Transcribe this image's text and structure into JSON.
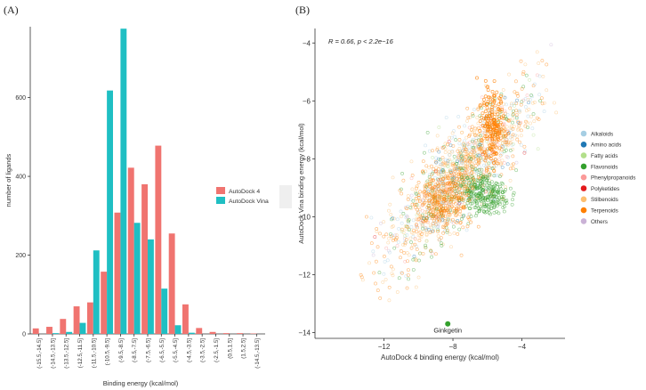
{
  "panels": {
    "a_label": "(A)",
    "b_label": "(B)"
  },
  "chart_data": [
    {
      "type": "bar",
      "title": "",
      "xlabel": "Binding energy (kcal/mol)",
      "ylabel": "number of ligands",
      "ylim": [
        0,
        780
      ],
      "yticks": [
        0,
        200,
        400,
        600
      ],
      "categories": [
        "(-15.5,-14.5]",
        "(-14.5,-13.5]",
        "(-13.5,-12.5]",
        "(-12.5,-11.5]",
        "(-11.5,-10.5]",
        "(-10.5,-9.5]",
        "(-9.5,-8.5]",
        "(-8.5,-7.5]",
        "(-7.5,-6.5]",
        "(-6.5,-5.5]",
        "(-5.5,-4.5]",
        "(-4.5,-3.5]",
        "(-3.5,-2.5]",
        "(-2.5,-1.5]",
        "(0.5,1.5]",
        "(1.5,2.5]",
        "(-14.5,-13.5]"
      ],
      "series": [
        {
          "name": "AutoDock 4",
          "color": "#F07470",
          "values": [
            14,
            18,
            38,
            70,
            80,
            158,
            308,
            422,
            380,
            478,
            255,
            75,
            15,
            5,
            2,
            2,
            1
          ]
        },
        {
          "name": "AutoDock Vina",
          "color": "#1FBFC3",
          "values": [
            0,
            2,
            5,
            28,
            212,
            618,
            775,
            282,
            240,
            115,
            22,
            3,
            0,
            0,
            0,
            0,
            0
          ]
        }
      ],
      "legend": "right"
    },
    {
      "type": "scatter",
      "title": "",
      "xlabel": "AutoDock 4 binding energy (kcal/mol)",
      "ylabel": "AutoDock Vina binding energy (kcal/mol)",
      "xlim": [
        -16,
        -1.5
      ],
      "ylim": [
        -14.2,
        -3.5
      ],
      "xticks": [
        -12,
        -8,
        -4
      ],
      "yticks": [
        -14,
        -12,
        -10,
        -8,
        -6,
        -4
      ],
      "annotation": "R = 0.66, p < 2.2e−16",
      "highlight": {
        "label": "Ginkgetin",
        "x": -8.3,
        "y": -13.7,
        "color": "#33A02C"
      },
      "categories": [
        {
          "name": "Alkaloids",
          "color": "#A6CEE3"
        },
        {
          "name": "Amino acids",
          "color": "#1F78B4"
        },
        {
          "name": "Fatty acids",
          "color": "#B2DF8A"
        },
        {
          "name": "Flavonoids",
          "color": "#33A02C"
        },
        {
          "name": "Phenylpropanoids",
          "color": "#FB9A99"
        },
        {
          "name": "Polyketides",
          "color": "#E31A1C"
        },
        {
          "name": "Stilbenoids",
          "color": "#FDBF6F"
        },
        {
          "name": "Terpenoids",
          "color": "#FF7F00"
        },
        {
          "name": "Others",
          "color": "#CAB2D6"
        }
      ],
      "legend": "right"
    }
  ]
}
